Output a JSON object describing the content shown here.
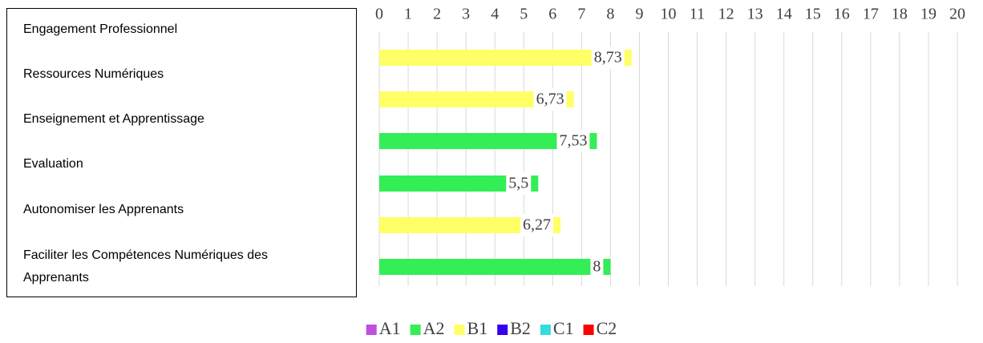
{
  "chart_data": {
    "type": "bar",
    "orientation": "horizontal",
    "categories": [
      "Engagement Professionnel",
      "Ressources Numériques",
      "Enseignement et Apprentissage",
      "Evaluation",
      "Autonomiser les Apprenants",
      "Faciliter les Compétences Numériques des Apprenants"
    ],
    "series": [
      {
        "name": "A1",
        "color": "#bf4fe0",
        "values": [
          null,
          null,
          null,
          null,
          null,
          null
        ]
      },
      {
        "name": "A2",
        "color": "#33ee55",
        "values": [
          null,
          null,
          7.53,
          5.5,
          null,
          8
        ],
        "value_labels": [
          null,
          null,
          "7,53",
          "5,5",
          null,
          "8"
        ]
      },
      {
        "name": "B1",
        "color": "#ffff66",
        "values": [
          8.73,
          6.73,
          null,
          null,
          6.27,
          null
        ],
        "value_labels": [
          "8,73",
          "6,73",
          null,
          null,
          "6,27",
          null
        ]
      },
      {
        "name": "B2",
        "color": "#3300ee",
        "values": [
          null,
          null,
          null,
          null,
          null,
          null
        ]
      },
      {
        "name": "C1",
        "color": "#33dddd",
        "values": [
          null,
          null,
          null,
          null,
          null,
          null
        ]
      },
      {
        "name": "C2",
        "color": "#ff0000",
        "values": [
          null,
          null,
          null,
          null,
          null,
          null
        ]
      }
    ],
    "xlim": [
      0,
      20
    ],
    "xticks": [
      0,
      1,
      2,
      3,
      4,
      5,
      6,
      7,
      8,
      9,
      10,
      11,
      12,
      13,
      14,
      15,
      16,
      17,
      18,
      19,
      20
    ],
    "grid": true,
    "legend": "bottom"
  }
}
